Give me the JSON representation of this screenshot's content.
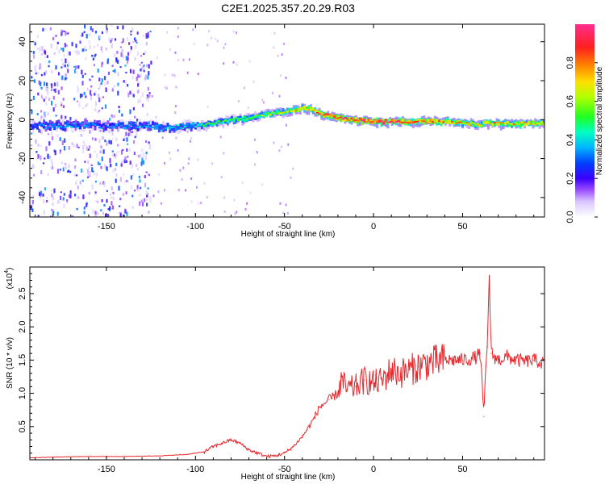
{
  "title": "C2E1.2025.357.20.29.R03",
  "chart_data": [
    {
      "type": "heatmap",
      "title": "C2E1.2025.357.20.29.R03",
      "xlabel": "Height of straight line (km)",
      "ylabel": "Frequency (Hz)",
      "xlim": [
        -193,
        96
      ],
      "ylim": [
        -50,
        49
      ],
      "xticks": [
        -150,
        -100,
        -50,
        0,
        50
      ],
      "xtick_labels": [
        "-150",
        "-100",
        "-50",
        "0",
        "50"
      ],
      "yticks": [
        -40,
        -20,
        0,
        20,
        40
      ],
      "ytick_labels": [
        "-40",
        "-20",
        "0",
        "20",
        "40"
      ],
      "colorbar": {
        "label": "Normalized spectral amplitude",
        "range": [
          0,
          1
        ],
        "ticks": [
          0.0,
          0.2,
          0.4,
          0.6,
          0.8
        ],
        "tick_labels": [
          "0.0",
          "0.2",
          "0.4",
          "0.6",
          "0.8"
        ],
        "colors": [
          "#ffffff",
          "#b18cf0",
          "#6a00ff",
          "#0000ff",
          "#00b0ff",
          "#00ffb0",
          "#3cff00",
          "#c8ff00",
          "#ffd700",
          "#ff7f00",
          "#ff1a1a",
          "#ff3a8a"
        ]
      },
      "ridge": {
        "x": [
          -193,
          -180,
          -170,
          -160,
          -150,
          -140,
          -130,
          -120,
          -110,
          -100,
          -90,
          -80,
          -70,
          -60,
          -50,
          -45,
          -40,
          -35,
          -30,
          -25,
          -20,
          -15,
          -10,
          0,
          10,
          20,
          30,
          40,
          50,
          55,
          60,
          62,
          65,
          70,
          80,
          90,
          96
        ],
        "freq": [
          -3,
          -3,
          -3,
          -3,
          -3,
          -3,
          -3,
          -4,
          -4,
          -3,
          -2,
          0,
          1,
          3,
          4,
          5,
          6,
          5,
          3,
          2,
          1,
          0,
          0,
          -1,
          -1,
          -1,
          -1,
          -1,
          -2,
          -2,
          -3,
          -1,
          -2,
          -2,
          -2,
          -2,
          -2
        ],
        "amp": [
          0.3,
          0.35,
          0.35,
          0.35,
          0.3,
          0.35,
          0.35,
          0.4,
          0.4,
          0.45,
          0.5,
          0.5,
          0.55,
          0.6,
          0.65,
          0.7,
          0.75,
          0.8,
          0.85,
          0.9,
          0.95,
          0.9,
          0.95,
          0.95,
          0.95,
          0.9,
          0.85,
          0.8,
          0.75,
          0.7,
          0.7,
          0.75,
          0.75,
          0.75,
          0.75,
          0.75,
          0.7
        ]
      },
      "noise": {
        "x_range": [
          -193,
          -125
        ],
        "freq_range": [
          -50,
          49
        ],
        "amp_range": [
          0.05,
          0.35
        ]
      }
    },
    {
      "type": "line",
      "xlabel": "Height of straight line (km)",
      "ylabel": "SNR (10 * v/v)",
      "exponent_label": "(x10",
      "exponent_sup": "4",
      "xlim": [
        -193,
        96
      ],
      "ylim": [
        0,
        2.9
      ],
      "xticks": [
        -150,
        -100,
        -50,
        0,
        50
      ],
      "xtick_labels": [
        "-150",
        "-100",
        "-50",
        "0",
        "50"
      ],
      "yticks": [
        0.5,
        1.0,
        1.5,
        2.0,
        2.5
      ],
      "ytick_labels": [
        "0.5",
        "1.0",
        "1.5",
        "2.0",
        "2.5"
      ],
      "series": [
        {
          "name": "SNR",
          "color": "#e8262b",
          "x": [
            -193,
            -180,
            -160,
            -140,
            -120,
            -105,
            -95,
            -90,
            -85,
            -80,
            -75,
            -70,
            -65,
            -60,
            -55,
            -50,
            -45,
            -40,
            -35,
            -30,
            -25,
            -20,
            -18,
            -15,
            -10,
            -5,
            0,
            5,
            10,
            15,
            20,
            25,
            30,
            40,
            50,
            55,
            58,
            60,
            62,
            63,
            64,
            65,
            66,
            68,
            70,
            75,
            80,
            85,
            90,
            96
          ],
          "y": [
            0.03,
            0.04,
            0.05,
            0.05,
            0.06,
            0.08,
            0.12,
            0.2,
            0.25,
            0.3,
            0.25,
            0.15,
            0.1,
            0.05,
            0.06,
            0.1,
            0.2,
            0.35,
            0.55,
            0.8,
            0.9,
            1.0,
            1.2,
            1.05,
            1.1,
            1.2,
            1.15,
            1.2,
            1.35,
            1.3,
            1.35,
            1.4,
            1.45,
            1.5,
            1.5,
            1.52,
            1.55,
            1.6,
            0.65,
            1.4,
            1.7,
            2.9,
            1.6,
            1.55,
            1.5,
            1.55,
            1.5,
            1.48,
            1.5,
            1.45
          ]
        }
      ]
    }
  ]
}
